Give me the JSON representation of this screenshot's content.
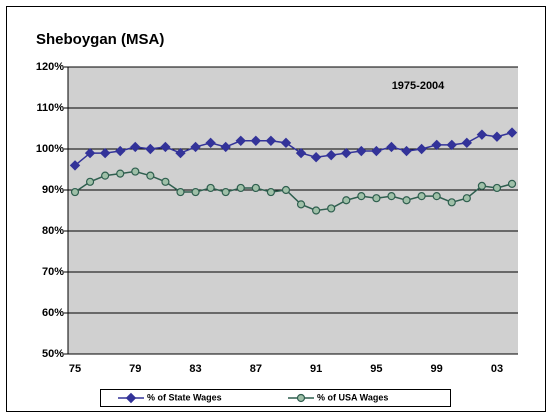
{
  "chart_data": {
    "type": "line",
    "title": "Sheboygan (MSA)",
    "annotation": "1975-2004",
    "categories": [
      "75",
      null,
      null,
      null,
      "79",
      null,
      null,
      null,
      "83",
      null,
      null,
      null,
      "87",
      null,
      null,
      null,
      "91",
      null,
      null,
      null,
      "95",
      null,
      null,
      null,
      "99",
      null,
      null,
      null,
      "03",
      null
    ],
    "series": [
      {
        "name": "% of State Wages",
        "color": "#333399",
        "marker": "diamond",
        "values": [
          96,
          99,
          99,
          99.5,
          100.5,
          100,
          100.5,
          99,
          100.5,
          101.5,
          100.5,
          102,
          102,
          102,
          101.5,
          99,
          98,
          98.5,
          99,
          99.5,
          99.5,
          100.5,
          99.5,
          100,
          101,
          101,
          101.5,
          103.5,
          103,
          104
        ]
      },
      {
        "name": "% of USA Wages",
        "color": "#2f5f4f",
        "marker": "circle",
        "values": [
          89.5,
          92,
          93.5,
          94,
          94.5,
          93.5,
          92,
          89.5,
          89.5,
          90.5,
          89.5,
          90.5,
          90.5,
          89.5,
          90,
          86.5,
          85,
          85.5,
          87.5,
          88.5,
          88,
          88.5,
          87.5,
          88.5,
          88.5,
          87,
          88,
          91,
          90.5,
          91.5
        ]
      }
    ],
    "ylim": [
      50,
      120
    ],
    "yticks": [
      {
        "value": 50,
        "label": "50%"
      },
      {
        "value": 60,
        "label": "60%"
      },
      {
        "value": 70,
        "label": "70%"
      },
      {
        "value": 80,
        "label": "80%"
      },
      {
        "value": 90,
        "label": "90%"
      },
      {
        "value": 100,
        "label": "100%"
      },
      {
        "value": 110,
        "label": "110%"
      },
      {
        "value": 120,
        "label": "120%"
      }
    ],
    "grid": true,
    "legend": "bottom"
  }
}
